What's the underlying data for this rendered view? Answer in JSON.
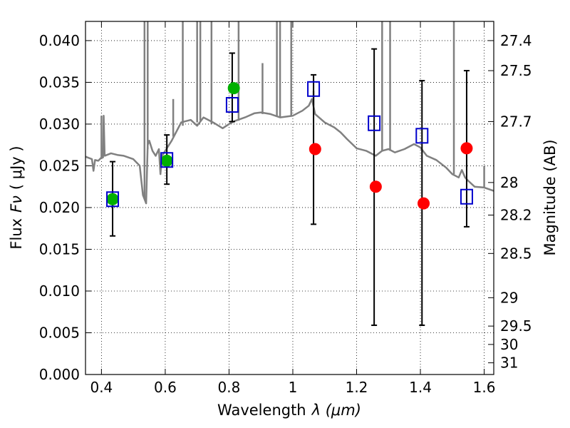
{
  "chart_data": {
    "type": "scatter",
    "title": "",
    "xlabel": "Wavelength",
    "xlabel_symbol": "λ (μm)",
    "ylabel": "Flux",
    "ylabel_symbol": "Fν",
    "ylabel_unit": "( μJy )",
    "y2label": "Magnitude (AB)",
    "xlim": [
      0.35,
      1.63
    ],
    "ylim": [
      0.0,
      0.0423
    ],
    "grid": true,
    "x_ticks": [
      0.4,
      0.6,
      0.8,
      1.0,
      1.2,
      1.4,
      1.6
    ],
    "x_tick_labels": [
      "0.4",
      "0.6",
      "0.8",
      "1",
      "1.2",
      "1.4",
      "1.6"
    ],
    "y_ticks": [
      0.0,
      0.005,
      0.01,
      0.015,
      0.02,
      0.025,
      0.03,
      0.035,
      0.04
    ],
    "y_tick_labels": [
      "0.000",
      "0.005",
      "0.010",
      "0.015",
      "0.020",
      "0.025",
      "0.030",
      "0.035",
      "0.040"
    ],
    "mag_ticks": [
      {
        "label": "27.4",
        "flux": 0.04
      },
      {
        "label": "27.5",
        "flux": 0.0364
      },
      {
        "label": "27.7",
        "flux": 0.0303
      },
      {
        "label": "28",
        "flux": 0.023
      },
      {
        "label": "28.2",
        "flux": 0.0191
      },
      {
        "label": "28.5",
        "flux": 0.0145
      },
      {
        "label": "29",
        "flux": 0.0092
      },
      {
        "label": "29.5",
        "flux": 0.0058
      },
      {
        "label": "30",
        "flux": 0.0036
      },
      {
        "label": "31",
        "flux": 0.0014
      }
    ],
    "series": [
      {
        "name": "model-sed",
        "kind": "line",
        "color": "#808080",
        "x": [
          0.35,
          0.37,
          0.375,
          0.38,
          0.39,
          0.4,
          0.405,
          0.407,
          0.41,
          0.43,
          0.45,
          0.47,
          0.5,
          0.52,
          0.53,
          0.54,
          0.545,
          0.55,
          0.56,
          0.57,
          0.58,
          0.585,
          0.59,
          0.6,
          0.62,
          0.65,
          0.68,
          0.7,
          0.72,
          0.75,
          0.78,
          0.8,
          0.82,
          0.85,
          0.88,
          0.9,
          0.93,
          0.96,
          1.0,
          1.03,
          1.05,
          1.06,
          1.07,
          1.1,
          1.13,
          1.15,
          1.17,
          1.2,
          1.23,
          1.26,
          1.28,
          1.3,
          1.32,
          1.35,
          1.38,
          1.4,
          1.42,
          1.45,
          1.48,
          1.5,
          1.52,
          1.53,
          1.54,
          1.55,
          1.57,
          1.6,
          1.63
        ],
        "y": [
          0.0261,
          0.0258,
          0.0244,
          0.0257,
          0.0256,
          0.026,
          0.026,
          0.031,
          0.0262,
          0.0265,
          0.0263,
          0.0262,
          0.0258,
          0.025,
          0.0215,
          0.0205,
          0.0275,
          0.028,
          0.0268,
          0.0262,
          0.027,
          0.024,
          0.0262,
          0.0268,
          0.028,
          0.0302,
          0.0305,
          0.0298,
          0.0308,
          0.0302,
          0.0295,
          0.03,
          0.0304,
          0.0308,
          0.0313,
          0.0314,
          0.0312,
          0.0308,
          0.031,
          0.0316,
          0.0322,
          0.033,
          0.0312,
          0.0302,
          0.0296,
          0.029,
          0.0282,
          0.0271,
          0.0268,
          0.0262,
          0.0268,
          0.027,
          0.0266,
          0.027,
          0.0276,
          0.0272,
          0.0262,
          0.0257,
          0.0248,
          0.024,
          0.0236,
          0.0245,
          0.0236,
          0.0232,
          0.0225,
          0.0224,
          0.022
        ]
      },
      {
        "name": "emission-lines",
        "kind": "spikes",
        "color": "#808080",
        "lines": [
          {
            "x": 0.4,
            "base": 0.0258,
            "peak": 0.031
          },
          {
            "x": 0.535,
            "base": 0.021,
            "peak": 0.0423
          },
          {
            "x": 0.545,
            "base": 0.027,
            "peak": 0.0423
          },
          {
            "x": 0.625,
            "base": 0.0285,
            "peak": 0.033
          },
          {
            "x": 0.655,
            "base": 0.0298,
            "peak": 0.0423
          },
          {
            "x": 0.7,
            "base": 0.0302,
            "peak": 0.0423
          },
          {
            "x": 0.71,
            "base": 0.0304,
            "peak": 0.0423
          },
          {
            "x": 0.745,
            "base": 0.03,
            "peak": 0.0423
          },
          {
            "x": 0.83,
            "base": 0.0304,
            "peak": 0.0423
          },
          {
            "x": 0.905,
            "base": 0.0312,
            "peak": 0.0373
          },
          {
            "x": 0.95,
            "base": 0.0309,
            "peak": 0.0423
          },
          {
            "x": 0.96,
            "base": 0.0308,
            "peak": 0.0423
          },
          {
            "x": 0.995,
            "base": 0.031,
            "peak": 0.0423
          },
          {
            "x": 1.065,
            "base": 0.0322,
            "peak": 0.034
          },
          {
            "x": 1.28,
            "base": 0.0268,
            "peak": 0.0423
          },
          {
            "x": 1.305,
            "base": 0.0268,
            "peak": 0.0423
          },
          {
            "x": 1.505,
            "base": 0.024,
            "peak": 0.0423
          },
          {
            "x": 1.6,
            "base": 0.0224,
            "peak": 0.025
          }
        ]
      },
      {
        "name": "observed-green",
        "kind": "points",
        "marker": "circle",
        "color": "#00b000",
        "x": [
          0.435,
          0.605,
          0.815
        ],
        "y": [
          0.021,
          0.0256,
          0.0343
        ]
      },
      {
        "name": "observed-red",
        "kind": "points",
        "marker": "circle",
        "color": "#ff0000",
        "x": [
          1.07,
          1.26,
          1.41,
          1.545
        ],
        "y": [
          0.027,
          0.0225,
          0.0205,
          0.0271
        ]
      },
      {
        "name": "model-photometry",
        "kind": "points",
        "marker": "square-open",
        "color": "#0000cc",
        "x": [
          0.435,
          0.605,
          0.81,
          1.065,
          1.255,
          1.405,
          1.545
        ],
        "y": [
          0.021,
          0.0257,
          0.0323,
          0.0342,
          0.0301,
          0.0286,
          0.0213
        ],
        "err_low": [
          0.0166,
          0.0228,
          0.0303,
          0.018,
          0.0059,
          0.0059,
          0.0177
        ],
        "err_high": [
          0.0255,
          0.0287,
          0.0385,
          0.0359,
          0.039,
          0.0352,
          0.0364
        ]
      }
    ]
  }
}
